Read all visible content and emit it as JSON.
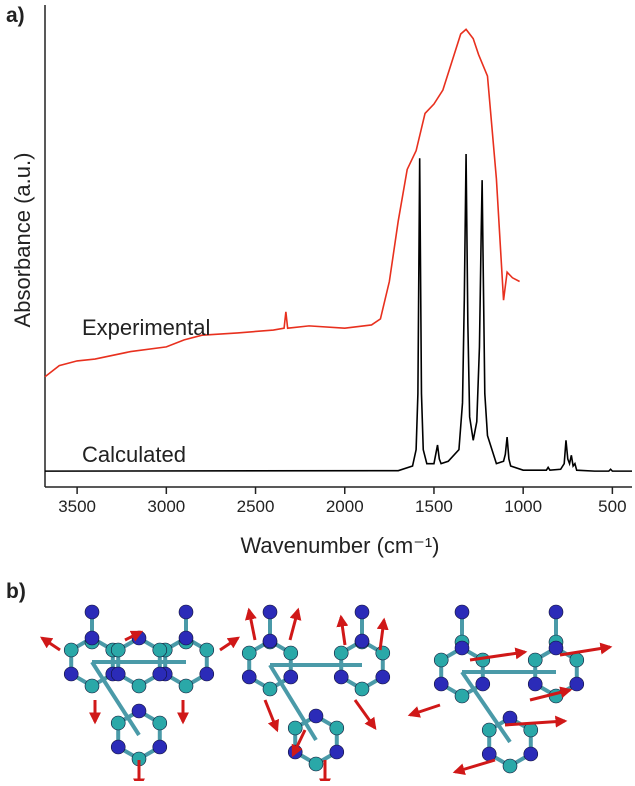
{
  "panel_a": "a)",
  "panel_b": "b)",
  "chart_data": {
    "type": "line",
    "x_label": "Wavenumber (cm⁻¹)",
    "y_label": "Absorbance (a.u.)",
    "xlim": [
      3680,
      390
    ],
    "xticks": [
      3500,
      3000,
      2500,
      2000,
      1500,
      1000,
      500
    ],
    "ylim": [
      0,
      100
    ],
    "yticks": [],
    "series": [
      {
        "name": "Experimental",
        "color": "#e8301e",
        "x": [
          3680,
          3600,
          3500,
          3400,
          3200,
          3000,
          2900,
          2800,
          2600,
          2400,
          2340,
          2330,
          2320,
          2200,
          2000,
          1850,
          1800,
          1750,
          1700,
          1650,
          1600,
          1550,
          1500,
          1450,
          1400,
          1350,
          1320,
          1280,
          1250,
          1200,
          1150,
          1110,
          1090,
          1060,
          1020
        ],
        "values": [
          23.6,
          26,
          27,
          27.4,
          29,
          30,
          31.5,
          32.5,
          33,
          33.6,
          34,
          37.5,
          34,
          34.5,
          34,
          34.7,
          36,
          44,
          57,
          68,
          72,
          80,
          82,
          85,
          91,
          97,
          98,
          96,
          92.6,
          88,
          66,
          40,
          46,
          44.8,
          44
        ]
      },
      {
        "name": "Calculated",
        "color": "#000000",
        "x": [
          3680,
          1700,
          1620,
          1600,
          1590,
          1580,
          1570,
          1560,
          1540,
          1500,
          1490,
          1480,
          1470,
          1460,
          1420,
          1360,
          1340,
          1330,
          1320,
          1310,
          1300,
          1280,
          1260,
          1245,
          1235,
          1230,
          1225,
          1215,
          1200,
          1150,
          1110,
          1100,
          1090,
          1080,
          1070,
          1000,
          870,
          860,
          850,
          790,
          770,
          760,
          750,
          740,
          730,
          720,
          710,
          700,
          600,
          520,
          510,
          500,
          390
        ],
        "values": [
          3.4,
          3.5,
          4.5,
          8,
          20,
          70.4,
          20,
          8,
          5,
          5,
          7,
          9,
          6,
          5,
          5.5,
          8,
          18,
          40,
          71.3,
          35,
          15,
          10,
          14,
          30,
          55,
          65.7,
          50,
          20,
          11,
          5,
          5.5,
          7,
          10.7,
          6,
          4.5,
          3.6,
          3.6,
          4.2,
          3.6,
          3.8,
          5,
          10,
          6,
          5,
          6.8,
          4.5,
          5,
          3.6,
          3.4,
          3.4,
          3.8,
          3.4,
          3.4
        ]
      }
    ]
  }
}
